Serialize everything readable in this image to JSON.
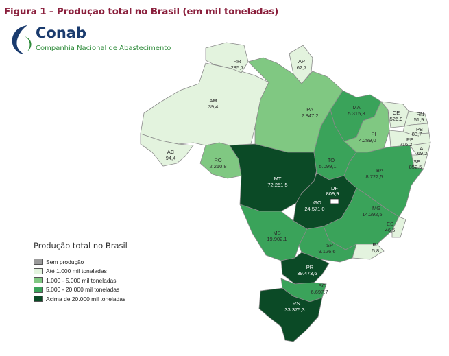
{
  "figure_title": "Figura 1 – Produção total no Brasil (em mil toneladas)",
  "logo": {
    "name": "Conab",
    "subtitle": "Companhia Nacional de Abastecimento"
  },
  "legend": {
    "title": "Produção total no Brasil",
    "items": [
      {
        "label": "Sem produção",
        "color": "#9a9a9a"
      },
      {
        "label": "Até 1.000 mil toneladas",
        "color": "#e3f3de"
      },
      {
        "label": "1.000 - 5.000 mil toneladas",
        "color": "#80c882"
      },
      {
        "label": "5.000 - 20.000 mil toneladas",
        "color": "#3aa35a"
      },
      {
        "label": "Acima de 20.000 mil toneladas",
        "color": "#0b4a26"
      }
    ]
  },
  "states": {
    "RR": {
      "abbr": "RR",
      "value": "285,7",
      "class": 1
    },
    "AP": {
      "abbr": "AP",
      "value": "62,7",
      "class": 1
    },
    "AM": {
      "abbr": "AM",
      "value": "39,4",
      "class": 1
    },
    "PA": {
      "abbr": "PA",
      "value": "2.847,2",
      "class": 2
    },
    "AC": {
      "abbr": "AC",
      "value": "94,4",
      "class": 1
    },
    "RO": {
      "abbr": "RO",
      "value": "2.210,8",
      "class": 2
    },
    "MT": {
      "abbr": "MT",
      "value": "72.251,5",
      "class": 4
    },
    "MA": {
      "abbr": "MA",
      "value": "5.315,3",
      "class": 3
    },
    "PI": {
      "abbr": "PI",
      "value": "4.289,0",
      "class": 2
    },
    "CE": {
      "abbr": "CE",
      "value": "526,9",
      "class": 1
    },
    "RN": {
      "abbr": "RN",
      "value": "51,9",
      "class": 1
    },
    "PB": {
      "abbr": "PB",
      "value": "83,7",
      "class": 1
    },
    "PE": {
      "abbr": "PE",
      "value": "216,2",
      "class": 1
    },
    "AL": {
      "abbr": "AL",
      "value": "69,2",
      "class": 1
    },
    "SE": {
      "abbr": "SE",
      "value": "852,5",
      "class": 1
    },
    "TO": {
      "abbr": "TO",
      "value": "5.099,1",
      "class": 3
    },
    "BA": {
      "abbr": "BA",
      "value": "8.722,5",
      "class": 3
    },
    "DF": {
      "abbr": "DF",
      "value": "809,9",
      "class": 1
    },
    "GO": {
      "abbr": "GO",
      "value": "24.571,0",
      "class": 4
    },
    "MG": {
      "abbr": "MG",
      "value": "14.292,5",
      "class": 3
    },
    "ES": {
      "abbr": "ES",
      "value": "46,5",
      "class": 1
    },
    "MS": {
      "abbr": "MS",
      "value": "19.902,1",
      "class": 3
    },
    "SP": {
      "abbr": "SP",
      "value": "9.126,6",
      "class": 3
    },
    "RJ": {
      "abbr": "RJ",
      "value": "5,8",
      "class": 1
    },
    "PR": {
      "abbr": "PR",
      "value": "39.473,6",
      "class": 4
    },
    "SC": {
      "abbr": "SC",
      "value": "6.697,7",
      "class": 3
    },
    "RS": {
      "abbr": "RS",
      "value": "33.375,3",
      "class": 4
    }
  }
}
